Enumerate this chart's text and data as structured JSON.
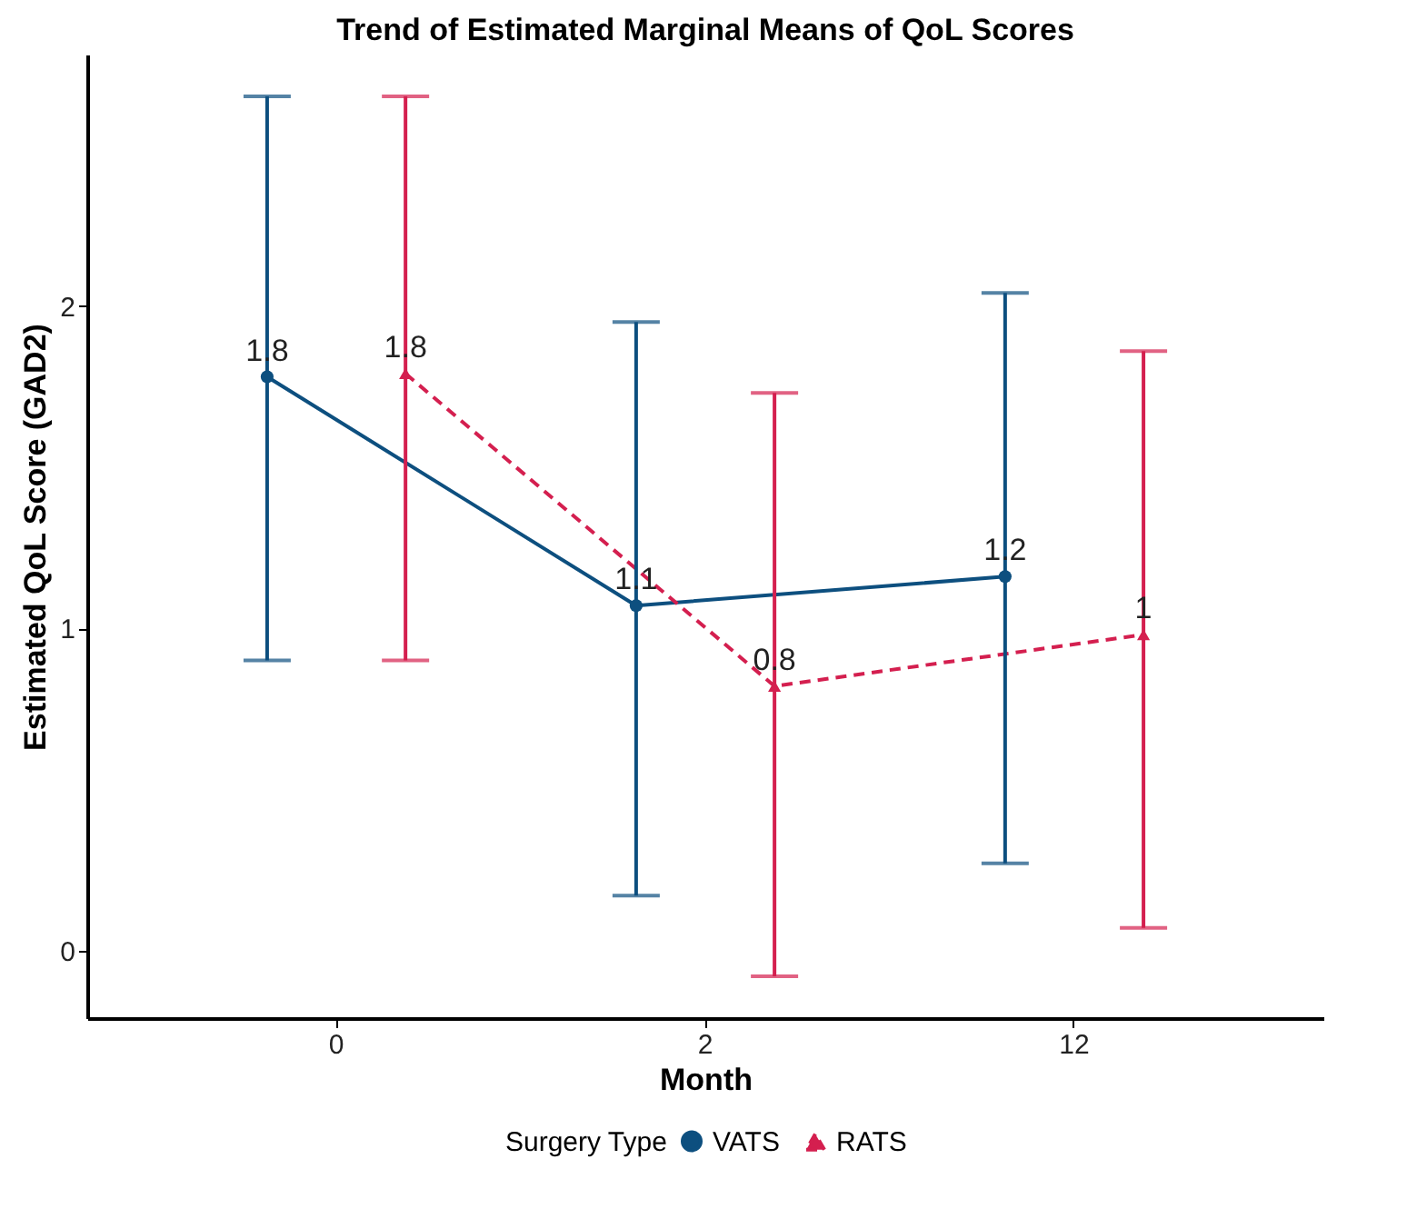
{
  "chart_data": {
    "type": "line",
    "title": "Trend of Estimated Marginal Means of QoL Scores",
    "xlabel": "Month",
    "ylabel": "Estimated QoL Score (GAD2)",
    "legend_title": "Surgery Type",
    "categories": [
      "0",
      "2",
      "12"
    ],
    "series": [
      {
        "name": "VATS",
        "color": "#0d4f7f",
        "values": [
          1.78,
          1.07,
          1.16
        ],
        "errors": [
          [
            0.9,
            2.65
          ],
          [
            0.17,
            1.95
          ],
          [
            0.27,
            2.04
          ]
        ],
        "value_labels": [
          "1.8",
          "1.1",
          "1.2"
        ],
        "marker": "circle",
        "line_style": "solid"
      },
      {
        "name": "RATS",
        "color": "#d41f4f",
        "values": [
          1.79,
          0.82,
          0.98
        ],
        "errors": [
          [
            0.9,
            2.65
          ],
          [
            -0.08,
            1.73
          ],
          [
            0.07,
            1.86
          ]
        ],
        "value_labels": [
          "1.8",
          "0.8",
          "1"
        ],
        "marker": "triangle",
        "line_style": "dashed"
      }
    ],
    "ylim": [
      -0.21,
      2.78
    ],
    "yticks": [
      0,
      1,
      2
    ],
    "grid": false,
    "legend": "bottom"
  }
}
